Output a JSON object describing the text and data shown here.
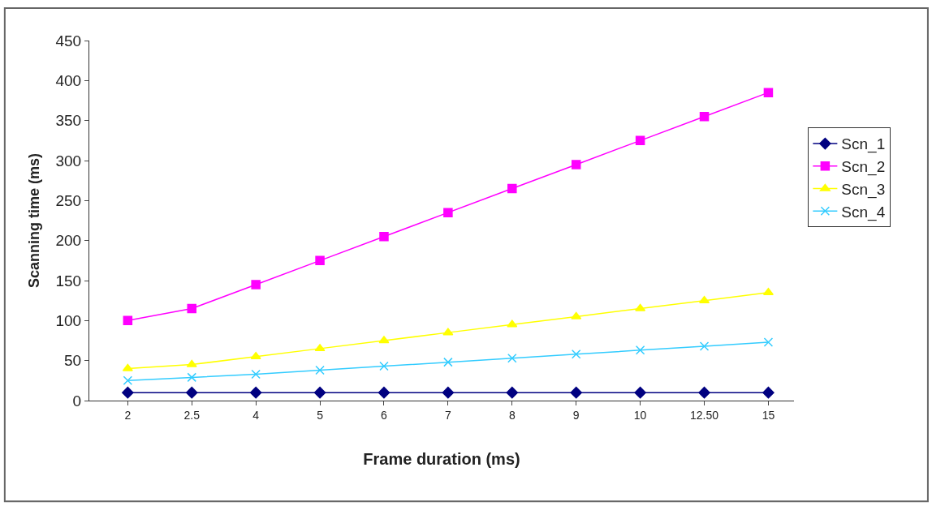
{
  "chart_data": {
    "type": "line",
    "xlabel": "Frame duration (ms)",
    "ylabel": "Scanning time (ms)",
    "categories": [
      "2",
      "2.5",
      "4",
      "5",
      "6",
      "7",
      "8",
      "9",
      "10",
      "12.50",
      "15"
    ],
    "ylim": [
      0,
      450
    ],
    "yticks": [
      0,
      50,
      100,
      150,
      200,
      250,
      300,
      350,
      400,
      450
    ],
    "legend": "right",
    "series": [
      {
        "name": "Scn_1",
        "color": "#000080",
        "marker": "diamond",
        "values": [
          10,
          10,
          10,
          10,
          10,
          10,
          10,
          10,
          10,
          10,
          10
        ]
      },
      {
        "name": "Scn_2",
        "color": "#ff00ff",
        "marker": "square",
        "values": [
          100,
          115,
          145,
          175,
          205,
          235,
          265,
          295,
          325,
          355,
          385
        ]
      },
      {
        "name": "Scn_3",
        "color": "#ffff00",
        "marker": "triangle",
        "values": [
          40,
          45,
          55,
          65,
          75,
          85,
          95,
          105,
          115,
          125,
          135
        ]
      },
      {
        "name": "Scn_4",
        "color": "#33ccff",
        "marker": "cross",
        "values": [
          25,
          29,
          33,
          38,
          43,
          48,
          53,
          58,
          63,
          68,
          73
        ]
      }
    ]
  }
}
